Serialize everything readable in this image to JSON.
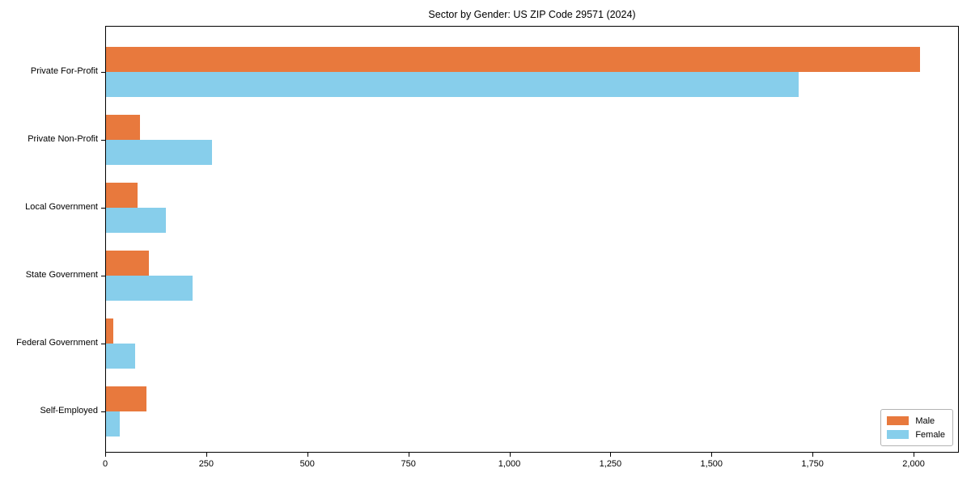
{
  "title": "Sector by Gender: US ZIP Code 29571 (2024)",
  "chart_data": {
    "type": "bar",
    "orientation": "horizontal",
    "title": "Sector by Gender: US ZIP Code 29571 (2024)",
    "categories": [
      "Private For-Profit",
      "Private Non-Profit",
      "Local Government",
      "State Government",
      "Federal Government",
      "Self-Employed"
    ],
    "series": [
      {
        "name": "Male",
        "color": "#E8793D",
        "values": [
          2014,
          84,
          78,
          106,
          18,
          100
        ]
      },
      {
        "name": "Female",
        "color": "#87CEEB",
        "values": [
          1714,
          262,
          148,
          214,
          72,
          34
        ]
      }
    ],
    "xlabel": "",
    "ylabel": "",
    "xlim": [
      0,
      2112
    ],
    "x_ticks": [
      {
        "value": 0,
        "label": "0"
      },
      {
        "value": 250,
        "label": "250"
      },
      {
        "value": 500,
        "label": "500"
      },
      {
        "value": 750,
        "label": "750"
      },
      {
        "value": 1000,
        "label": "1,000"
      },
      {
        "value": 1250,
        "label": "1,250"
      },
      {
        "value": 1500,
        "label": "1,500"
      },
      {
        "value": 1750,
        "label": "1,750"
      },
      {
        "value": 2000,
        "label": "2,000"
      }
    ],
    "grid": false,
    "legend_position": "lower right",
    "axis_color": "#000000",
    "plot_background": "#ffffff"
  }
}
